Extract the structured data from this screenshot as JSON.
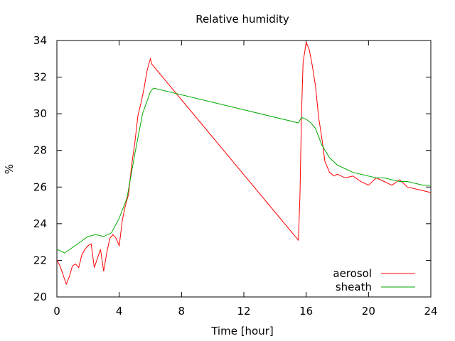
{
  "chart_data": {
    "type": "line",
    "title": "Relative humidity",
    "xlabel": "Time [hour]",
    "ylabel": "%",
    "xlim": [
      0,
      24
    ],
    "ylim": [
      20,
      34
    ],
    "xticks": [
      0,
      4,
      8,
      12,
      16,
      20,
      24
    ],
    "yticks": [
      20,
      22,
      24,
      26,
      28,
      30,
      32,
      34
    ],
    "legend_position": "bottom-right",
    "grid": false,
    "series": [
      {
        "name": "aerosol",
        "color": "#ff0000",
        "x": [
          0,
          0.2,
          0.4,
          0.6,
          0.8,
          1.0,
          1.2,
          1.4,
          1.6,
          1.8,
          2.0,
          2.2,
          2.4,
          2.6,
          2.8,
          3.0,
          3.2,
          3.4,
          3.6,
          3.8,
          4.0,
          4.2,
          4.4,
          4.6,
          4.8,
          5.0,
          5.2,
          5.4,
          5.6,
          5.8,
          6.0,
          6.1,
          15.5,
          15.6,
          15.7,
          15.8,
          16.0,
          16.2,
          16.4,
          16.6,
          16.8,
          17.0,
          17.2,
          17.5,
          17.8,
          18.0,
          18.5,
          19.0,
          19.5,
          20.0,
          20.5,
          21.0,
          21.5,
          22.0,
          22.5,
          23.0,
          23.5,
          24.0
        ],
        "y": [
          22.0,
          21.7,
          21.2,
          20.7,
          21.1,
          21.7,
          21.8,
          21.6,
          22.3,
          22.6,
          22.8,
          22.9,
          21.6,
          22.1,
          22.6,
          21.4,
          22.4,
          23.2,
          23.4,
          23.2,
          22.8,
          24.2,
          25.0,
          25.6,
          27.2,
          28.4,
          29.9,
          30.6,
          31.4,
          32.4,
          33.0,
          32.7,
          23.1,
          25.5,
          30.0,
          32.8,
          33.9,
          33.5,
          32.6,
          31.5,
          29.8,
          28.7,
          27.4,
          26.8,
          26.6,
          26.7,
          26.5,
          26.6,
          26.3,
          26.1,
          26.5,
          26.3,
          26.1,
          26.4,
          26.0,
          25.9,
          25.8,
          25.7
        ]
      },
      {
        "name": "sheath",
        "color": "#00aa00",
        "x": [
          0,
          0.5,
          1.0,
          1.5,
          2.0,
          2.5,
          3.0,
          3.5,
          4.0,
          4.5,
          5.0,
          5.5,
          6.0,
          6.2,
          15.5,
          15.7,
          16.0,
          16.3,
          16.6,
          17.0,
          17.5,
          18.0,
          18.5,
          19.0,
          19.5,
          20.0,
          20.5,
          21.0,
          21.5,
          22.0,
          22.5,
          23.0,
          23.5,
          24.0
        ],
        "y": [
          22.6,
          22.4,
          22.7,
          23.0,
          23.3,
          23.4,
          23.3,
          23.5,
          24.3,
          25.4,
          27.8,
          30.0,
          31.2,
          31.4,
          29.5,
          29.8,
          29.7,
          29.5,
          29.2,
          28.3,
          27.6,
          27.2,
          27.0,
          26.8,
          26.7,
          26.6,
          26.5,
          26.5,
          26.4,
          26.3,
          26.3,
          26.2,
          26.1,
          26.1
        ]
      }
    ]
  }
}
